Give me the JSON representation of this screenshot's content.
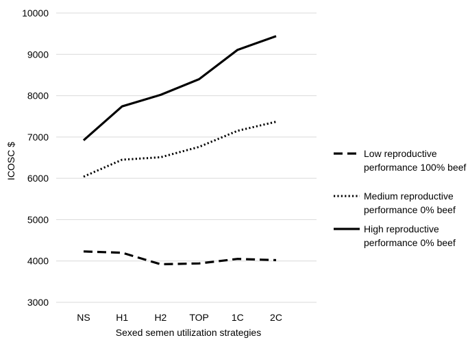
{
  "chart_data": {
    "type": "line",
    "title": "",
    "xlabel": "Sexed semen utilization strategies",
    "ylabel": "ICOSC $",
    "categories": [
      "NS",
      "H1",
      "H2",
      "TOP",
      "1C",
      "2C"
    ],
    "ylim": [
      3000,
      10000
    ],
    "yticks": [
      3000,
      4000,
      5000,
      6000,
      7000,
      8000,
      9000,
      10000
    ],
    "grid": true,
    "legend_position": "right",
    "series": [
      {
        "name": "Low reproductive performance 100% beef",
        "legend_lines": [
          "Low reproductive",
          "performance 100% beef"
        ],
        "style": "dashed",
        "color": "#000000",
        "values": [
          4230,
          4200,
          3920,
          3940,
          4050,
          4020
        ]
      },
      {
        "name": "Medium reproductive performance 0% beef",
        "legend_lines": [
          "Medium reproductive",
          "performance 0% beef"
        ],
        "style": "dotted",
        "color": "#000000",
        "values": [
          6040,
          6450,
          6510,
          6760,
          7150,
          7370
        ]
      },
      {
        "name": "High reproductive performance 0% beef",
        "legend_lines": [
          "High reproductive",
          "performance 0% beef"
        ],
        "style": "solid",
        "color": "#000000",
        "values": [
          6920,
          7740,
          8020,
          8400,
          9110,
          9440
        ]
      }
    ]
  }
}
